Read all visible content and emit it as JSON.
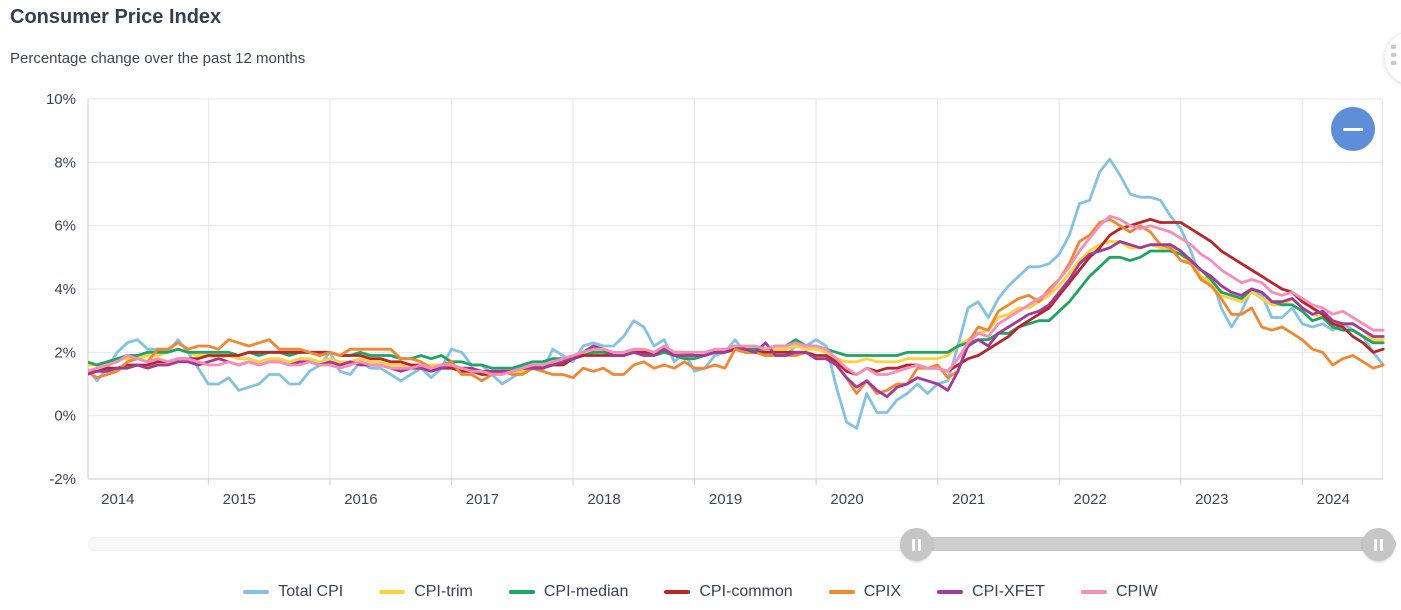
{
  "header": {
    "title": "Consumer Price Index",
    "subtitle": "Percentage change over the past 12 months"
  },
  "controls": {
    "menu_icon": "kebab-menu-icon",
    "collapse_icon": "minus-icon"
  },
  "colors": {
    "grid": "#e6e6e6",
    "axis": "#cccccc",
    "axis_text": "#39465a",
    "collapse_button": "#5f8ed8",
    "slider_track": "#f8f8f8",
    "slider_range": "#cdcdcd"
  },
  "chart_data": {
    "type": "line",
    "title": "Consumer Price Index",
    "subtitle": "Percentage change over the past 12 months",
    "x_start": "2014-01",
    "x_interval": "monthly",
    "x_tick_years": [
      2014,
      2015,
      2016,
      2017,
      2018,
      2019,
      2020,
      2021,
      2022,
      2023,
      2024
    ],
    "yticks": [
      10,
      8,
      6,
      4,
      2,
      0,
      -2
    ],
    "ytick_suffix": "%",
    "ylim": [
      -2,
      10
    ],
    "grid": true,
    "legend_position": "bottom",
    "series": [
      {
        "name": "Total CPI",
        "color": "#85c1e1",
        "values": [
          1.5,
          1.1,
          1.5,
          2.0,
          2.3,
          2.4,
          2.1,
          2.1,
          2.0,
          2.4,
          2.0,
          1.5,
          1.0,
          1.0,
          1.2,
          0.8,
          0.9,
          1.0,
          1.3,
          1.3,
          1.0,
          1.0,
          1.4,
          1.6,
          2.0,
          1.4,
          1.3,
          1.7,
          1.5,
          1.5,
          1.3,
          1.1,
          1.3,
          1.5,
          1.2,
          1.5,
          2.1,
          2.0,
          1.6,
          1.6,
          1.3,
          1.0,
          1.2,
          1.4,
          1.6,
          1.4,
          2.1,
          1.9,
          1.7,
          2.2,
          2.3,
          2.2,
          2.2,
          2.5,
          3.0,
          2.8,
          2.2,
          2.4,
          1.7,
          2.0,
          1.4,
          1.5,
          1.9,
          2.0,
          2.4,
          2.0,
          2.0,
          1.9,
          1.9,
          1.9,
          2.2,
          2.2,
          2.4,
          2.2,
          0.9,
          -0.2,
          -0.4,
          0.7,
          0.1,
          0.1,
          0.5,
          0.7,
          1.0,
          0.7,
          1.0,
          1.1,
          2.2,
          3.4,
          3.6,
          3.1,
          3.7,
          4.1,
          4.4,
          4.7,
          4.7,
          4.8,
          5.1,
          5.7,
          6.7,
          6.8,
          7.7,
          8.1,
          7.6,
          7.0,
          6.9,
          6.9,
          6.8,
          6.3,
          5.9,
          5.2,
          4.3,
          4.4,
          3.4,
          2.8,
          3.3,
          4.0,
          3.8,
          3.1,
          3.1,
          3.4,
          2.9,
          2.8,
          2.9,
          2.7,
          2.9,
          2.7,
          2.5,
          2.0,
          1.6
        ]
      },
      {
        "name": "CPI-trim",
        "color": "#fed23b",
        "values": [
          1.6,
          1.6,
          1.7,
          1.8,
          1.8,
          1.8,
          1.9,
          1.9,
          2.0,
          2.1,
          2.0,
          1.9,
          1.9,
          1.8,
          1.9,
          1.8,
          1.8,
          1.7,
          1.8,
          1.8,
          1.7,
          1.8,
          1.8,
          1.7,
          1.8,
          1.7,
          1.7,
          1.8,
          1.7,
          1.7,
          1.6,
          1.6,
          1.6,
          1.6,
          1.6,
          1.6,
          1.5,
          1.5,
          1.4,
          1.4,
          1.3,
          1.3,
          1.4,
          1.4,
          1.5,
          1.5,
          1.6,
          1.7,
          1.8,
          1.9,
          2.0,
          2.0,
          1.9,
          1.9,
          2.0,
          2.0,
          2.0,
          2.1,
          1.9,
          1.9,
          1.9,
          1.9,
          2.0,
          2.0,
          2.1,
          2.1,
          2.1,
          2.0,
          2.1,
          2.1,
          2.2,
          2.1,
          2.1,
          2.0,
          1.8,
          1.7,
          1.7,
          1.8,
          1.7,
          1.7,
          1.7,
          1.8,
          1.8,
          1.8,
          1.8,
          1.9,
          2.2,
          2.4,
          2.6,
          2.7,
          3.1,
          3.2,
          3.4,
          3.4,
          3.6,
          3.8,
          4.1,
          4.5,
          4.9,
          5.2,
          5.4,
          5.5,
          5.5,
          5.3,
          5.3,
          5.4,
          5.3,
          5.3,
          5.1,
          4.8,
          4.4,
          4.2,
          3.8,
          3.7,
          3.6,
          3.9,
          3.7,
          3.5,
          3.5,
          3.7,
          3.4,
          3.2,
          3.1,
          2.9,
          2.9,
          2.9,
          2.7,
          2.4,
          2.4
        ]
      },
      {
        "name": "CPI-median",
        "color": "#21a363",
        "values": [
          1.7,
          1.6,
          1.7,
          1.8,
          1.9,
          1.9,
          2.0,
          2.0,
          2.0,
          2.1,
          2.0,
          2.0,
          2.0,
          2.0,
          2.0,
          1.9,
          2.0,
          1.9,
          2.0,
          2.0,
          1.9,
          2.0,
          2.0,
          1.9,
          2.0,
          1.9,
          1.9,
          2.0,
          1.9,
          1.9,
          1.9,
          1.8,
          1.8,
          1.9,
          1.8,
          1.9,
          1.7,
          1.7,
          1.6,
          1.6,
          1.5,
          1.5,
          1.5,
          1.6,
          1.7,
          1.7,
          1.8,
          1.8,
          1.8,
          1.9,
          2.0,
          2.0,
          1.9,
          1.9,
          2.0,
          2.0,
          1.9,
          2.0,
          1.9,
          1.8,
          1.8,
          1.9,
          2.0,
          2.0,
          2.1,
          2.1,
          2.1,
          2.1,
          2.2,
          2.2,
          2.4,
          2.2,
          2.2,
          2.1,
          2.0,
          1.9,
          1.9,
          1.9,
          1.9,
          1.9,
          1.9,
          2.0,
          2.0,
          2.0,
          2.0,
          2.0,
          2.2,
          2.3,
          2.4,
          2.4,
          2.6,
          2.6,
          2.8,
          2.9,
          3.0,
          3.0,
          3.3,
          3.6,
          4.0,
          4.4,
          4.7,
          5.0,
          5.0,
          4.9,
          5.0,
          5.2,
          5.2,
          5.2,
          5.1,
          4.9,
          4.6,
          4.3,
          3.9,
          3.8,
          3.7,
          4.0,
          3.9,
          3.6,
          3.5,
          3.5,
          3.3,
          3.0,
          3.1,
          2.8,
          2.7,
          2.7,
          2.5,
          2.3,
          2.3
        ]
      },
      {
        "name": "CPI-common",
        "color": "#b3282d",
        "values": [
          1.4,
          1.4,
          1.5,
          1.5,
          1.6,
          1.6,
          1.6,
          1.7,
          1.7,
          1.8,
          1.8,
          1.8,
          1.9,
          1.9,
          1.9,
          1.9,
          2.0,
          2.0,
          2.0,
          2.0,
          2.0,
          2.0,
          2.0,
          2.0,
          2.0,
          1.9,
          1.9,
          1.9,
          1.8,
          1.8,
          1.7,
          1.7,
          1.6,
          1.6,
          1.5,
          1.5,
          1.5,
          1.4,
          1.4,
          1.3,
          1.3,
          1.4,
          1.4,
          1.5,
          1.5,
          1.6,
          1.6,
          1.6,
          1.8,
          1.9,
          1.9,
          1.9,
          1.9,
          1.9,
          2.0,
          2.0,
          2.0,
          2.1,
          2.0,
          2.0,
          1.9,
          1.9,
          2.0,
          2.0,
          2.1,
          2.0,
          2.0,
          2.0,
          2.0,
          2.0,
          2.0,
          2.0,
          1.9,
          1.9,
          1.7,
          1.4,
          1.3,
          1.5,
          1.4,
          1.5,
          1.5,
          1.6,
          1.6,
          1.5,
          1.5,
          1.4,
          1.6,
          1.8,
          1.9,
          2.1,
          2.3,
          2.5,
          2.8,
          3.0,
          3.2,
          3.4,
          3.8,
          4.2,
          4.6,
          5.0,
          5.3,
          5.7,
          5.9,
          6.0,
          6.1,
          6.2,
          6.1,
          6.1,
          6.1,
          5.9,
          5.7,
          5.5,
          5.2,
          5.0,
          4.8,
          4.6,
          4.4,
          4.2,
          4.0,
          3.9,
          3.6,
          3.4,
          3.2,
          2.9,
          2.8,
          2.5,
          2.3,
          2.0,
          2.1
        ]
      },
      {
        "name": "CPIX",
        "color": "#ef8733",
        "values": [
          1.4,
          1.2,
          1.3,
          1.4,
          1.7,
          1.8,
          1.7,
          2.1,
          2.1,
          2.3,
          2.1,
          2.2,
          2.2,
          2.1,
          2.4,
          2.3,
          2.2,
          2.3,
          2.4,
          2.1,
          2.1,
          2.1,
          2.0,
          1.9,
          2.0,
          1.9,
          2.1,
          2.1,
          2.1,
          2.1,
          2.1,
          1.8,
          1.8,
          1.7,
          1.5,
          1.6,
          1.7,
          1.3,
          1.3,
          1.1,
          1.3,
          1.4,
          1.3,
          1.3,
          1.5,
          1.4,
          1.3,
          1.3,
          1.2,
          1.5,
          1.4,
          1.5,
          1.3,
          1.3,
          1.6,
          1.7,
          1.5,
          1.6,
          1.5,
          1.7,
          1.5,
          1.5,
          1.6,
          1.5,
          2.1,
          2.0,
          2.0,
          1.9,
          1.9,
          1.9,
          1.9,
          2.0,
          1.8,
          1.8,
          1.6,
          1.2,
          0.7,
          1.1,
          0.7,
          0.8,
          1.0,
          1.0,
          1.5,
          1.5,
          1.6,
          1.2,
          1.4,
          2.3,
          2.8,
          2.7,
          3.3,
          3.5,
          3.7,
          3.8,
          3.6,
          4.0,
          4.3,
          4.8,
          5.5,
          5.7,
          6.1,
          6.2,
          6.0,
          5.8,
          6.0,
          5.8,
          5.4,
          5.3,
          4.9,
          4.8,
          4.3,
          4.1,
          3.7,
          3.2,
          3.2,
          3.4,
          2.8,
          2.7,
          2.8,
          2.6,
          2.4,
          2.1,
          2.0,
          1.6,
          1.8,
          1.9,
          1.7,
          1.5,
          1.6
        ]
      },
      {
        "name": "CPI-XFET",
        "color": "#a23a97",
        "values": [
          1.3,
          1.4,
          1.4,
          1.5,
          1.5,
          1.6,
          1.5,
          1.6,
          1.6,
          1.7,
          1.7,
          1.6,
          1.7,
          1.8,
          1.7,
          1.6,
          1.7,
          1.6,
          1.7,
          1.7,
          1.6,
          1.7,
          1.7,
          1.6,
          1.7,
          1.6,
          1.7,
          1.6,
          1.6,
          1.6,
          1.5,
          1.4,
          1.5,
          1.5,
          1.4,
          1.5,
          1.6,
          1.5,
          1.5,
          1.4,
          1.4,
          1.4,
          1.4,
          1.5,
          1.5,
          1.5,
          1.6,
          1.7,
          1.8,
          2.0,
          2.2,
          2.1,
          1.9,
          1.9,
          2.0,
          1.9,
          1.9,
          2.1,
          1.9,
          1.9,
          1.9,
          1.9,
          2.0,
          2.0,
          2.2,
          2.1,
          2.0,
          2.3,
          1.9,
          1.9,
          2.0,
          2.0,
          1.8,
          1.8,
          1.6,
          1.2,
          0.9,
          1.1,
          0.8,
          0.6,
          0.9,
          1.0,
          1.2,
          1.1,
          1.0,
          0.8,
          1.4,
          2.2,
          2.4,
          2.2,
          2.6,
          2.8,
          3.0,
          3.2,
          3.3,
          3.5,
          3.9,
          4.3,
          4.8,
          5.1,
          5.2,
          5.3,
          5.5,
          5.4,
          5.3,
          5.4,
          5.4,
          5.4,
          5.2,
          4.9,
          4.6,
          4.4,
          4.1,
          3.9,
          3.8,
          4.0,
          3.9,
          3.6,
          3.6,
          3.7,
          3.4,
          3.2,
          3.3,
          3.0,
          2.9,
          2.9,
          2.7,
          2.5,
          2.5
        ]
      },
      {
        "name": "CPIW",
        "color": "#f48fba",
        "values": [
          1.4,
          1.5,
          1.6,
          1.7,
          1.9,
          1.8,
          1.7,
          1.8,
          1.7,
          1.8,
          1.8,
          1.7,
          1.6,
          1.6,
          1.7,
          1.6,
          1.7,
          1.6,
          1.7,
          1.7,
          1.6,
          1.6,
          1.7,
          1.6,
          1.6,
          1.5,
          1.6,
          1.7,
          1.6,
          1.6,
          1.5,
          1.5,
          1.5,
          1.6,
          1.5,
          1.6,
          1.6,
          1.5,
          1.4,
          1.4,
          1.3,
          1.3,
          1.4,
          1.5,
          1.6,
          1.6,
          1.7,
          1.8,
          1.9,
          2.0,
          2.1,
          2.1,
          2.0,
          2.0,
          2.1,
          2.1,
          2.0,
          2.2,
          2.0,
          2.0,
          2.0,
          2.0,
          2.1,
          2.1,
          2.2,
          2.2,
          2.2,
          2.1,
          2.2,
          2.2,
          2.3,
          2.2,
          2.2,
          2.1,
          1.8,
          1.5,
          1.3,
          1.5,
          1.3,
          1.3,
          1.4,
          1.5,
          1.6,
          1.5,
          1.5,
          1.4,
          1.8,
          2.3,
          2.6,
          2.5,
          2.9,
          3.1,
          3.3,
          3.5,
          3.7,
          3.9,
          4.3,
          4.7,
          5.2,
          5.6,
          6.0,
          6.3,
          6.2,
          6.0,
          5.9,
          6.0,
          5.9,
          5.8,
          5.6,
          5.4,
          5.1,
          4.9,
          4.6,
          4.4,
          4.2,
          4.3,
          4.2,
          3.9,
          3.8,
          3.9,
          3.7,
          3.5,
          3.4,
          3.2,
          3.3,
          3.1,
          2.9,
          2.7,
          2.7
        ]
      }
    ]
  }
}
